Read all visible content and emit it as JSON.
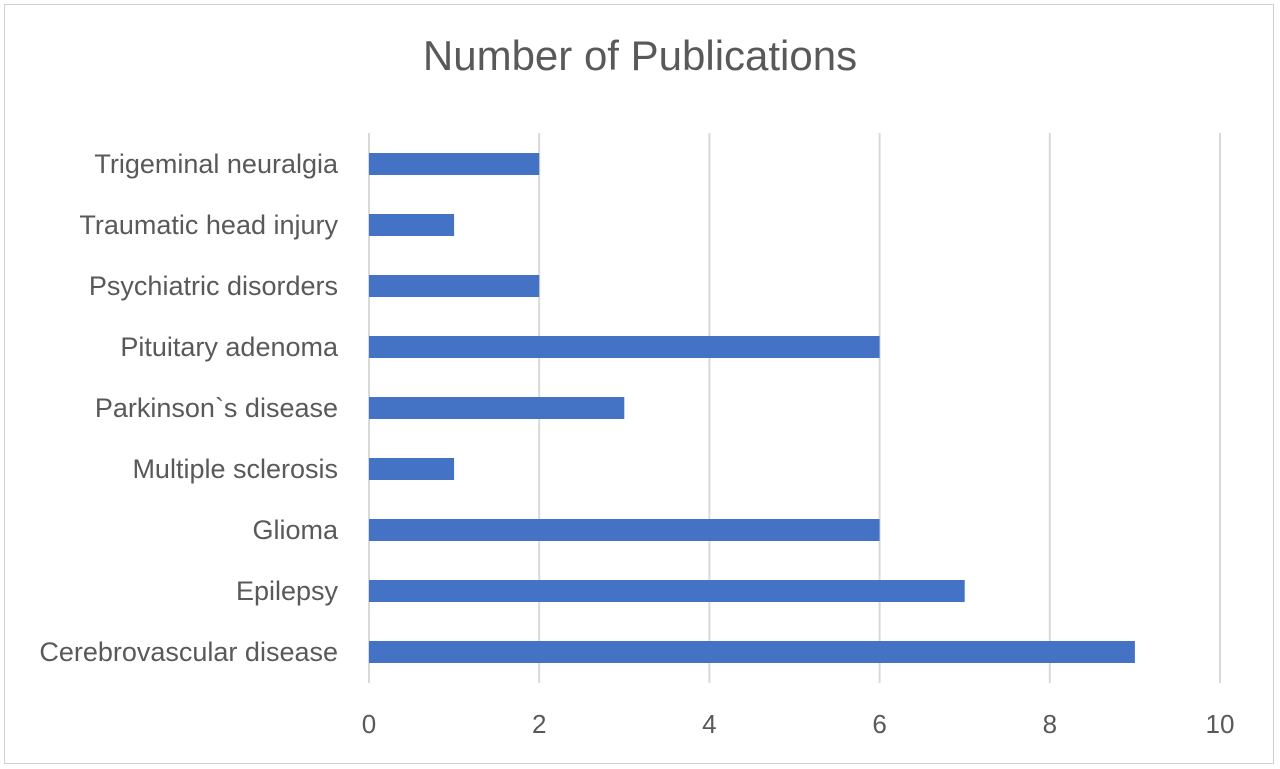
{
  "chart_data": {
    "type": "bar",
    "orientation": "horizontal",
    "title": "Number of Publications",
    "xlabel": "",
    "ylabel": "",
    "categories": [
      "Trigeminal neuralgia",
      "Traumatic head injury",
      "Psychiatric disorders",
      "Pituitary adenoma",
      "Parkinson`s disease",
      "Multiple sclerosis",
      "Glioma",
      "Epilepsy",
      "Cerebrovascular disease"
    ],
    "values": [
      2,
      1,
      2,
      6,
      3,
      1,
      6,
      7,
      9
    ],
    "xlim": [
      0,
      10
    ],
    "xticks": [
      "0",
      "2",
      "4",
      "6",
      "8",
      "10"
    ],
    "grid": "vertical",
    "legend": "none",
    "bar_color": "#4472C4",
    "grid_color": "#d9d9d9"
  }
}
